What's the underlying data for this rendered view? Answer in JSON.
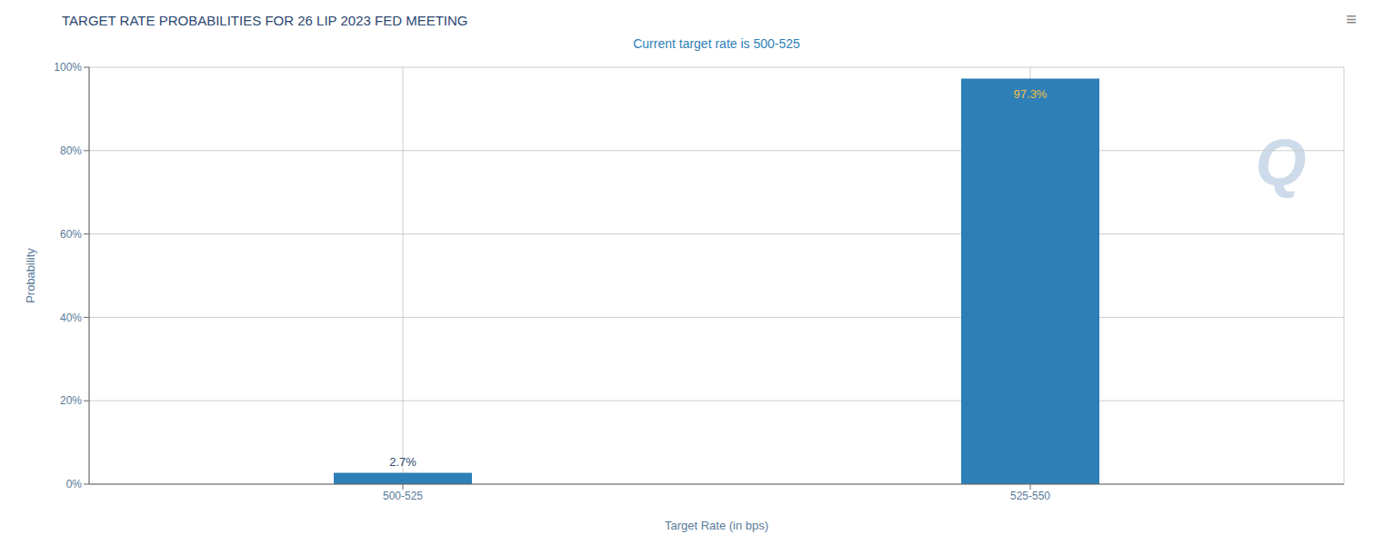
{
  "chart_data": {
    "type": "bar",
    "title": "TARGET RATE PROBABILITIES FOR 26 LIP 2023 FED MEETING",
    "subtitle": "Current target rate is 500-525",
    "categories": [
      "500-525",
      "525-550"
    ],
    "values": [
      2.7,
      97.3
    ],
    "value_labels": [
      "2.7%",
      "97.3%"
    ],
    "data_labels": true,
    "color": "#2e7fb8",
    "xlabel": "Target Rate (in bps)",
    "ylabel": "Probability",
    "ylim": [
      0,
      100
    ],
    "yticks": [
      {
        "value": 0,
        "label": "0%"
      },
      {
        "value": 20,
        "label": "20%"
      },
      {
        "value": 40,
        "label": "40%"
      },
      {
        "value": 60,
        "label": "60%"
      },
      {
        "value": 80,
        "label": "80%"
      },
      {
        "value": 100,
        "label": "100%"
      }
    ],
    "grid": true,
    "annotations": [
      "Q",
      "≡"
    ]
  }
}
